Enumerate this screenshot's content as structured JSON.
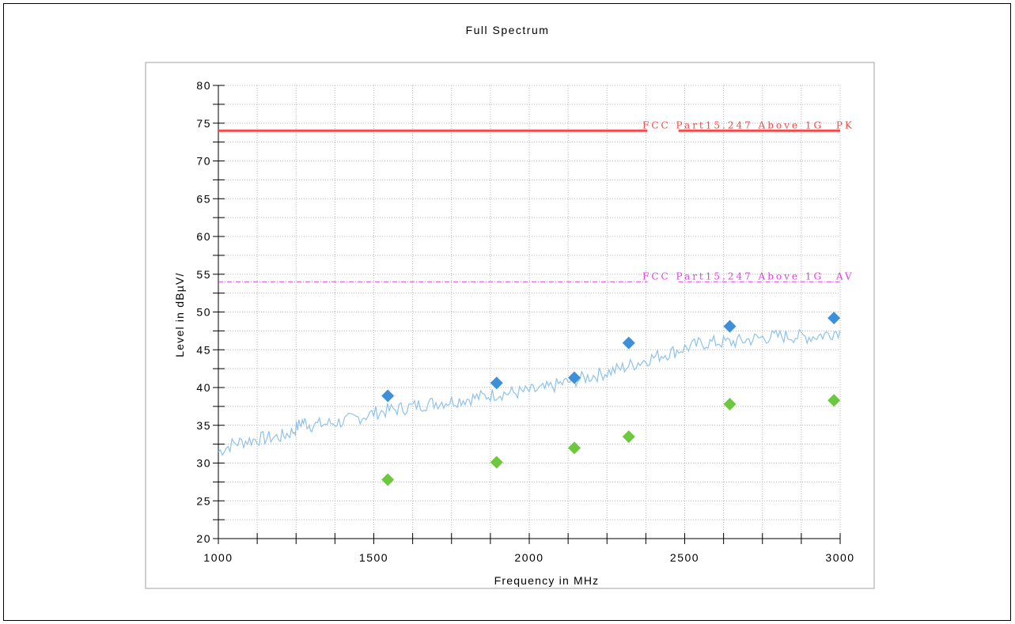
{
  "chart_data": {
    "type": "line",
    "title": "Full Spectrum",
    "xlabel": "Frequency in MHz",
    "ylabel": "Level in dBµV/",
    "xlim": [
      1000,
      3000
    ],
    "ylim": [
      20,
      80
    ],
    "x_ticks": [
      "1000",
      "1500",
      "2000",
      "2500",
      "3000"
    ],
    "y_ticks": [
      "20",
      "25",
      "30",
      "35",
      "40",
      "45",
      "50",
      "55",
      "60",
      "65",
      "70",
      "75",
      "80"
    ],
    "grid": true,
    "limit_lines": [
      {
        "name": "FCC Part15.247 Above 1G _PK",
        "y": 74,
        "color": "#f24b4b",
        "style": "solid"
      },
      {
        "name": "FCC Part15.247 Above 1G _AV",
        "y": 54,
        "color": "#e040e0",
        "style": "dash-dot"
      }
    ],
    "series": [
      {
        "type": "line",
        "color": "#8ec2ec",
        "x": [
          1000,
          1050,
          1100,
          1150,
          1200,
          1240,
          1270,
          1300,
          1350,
          1400,
          1450,
          1500,
          1550,
          1600,
          1650,
          1700,
          1750,
          1800,
          1850,
          1900,
          1950,
          2000,
          2050,
          2100,
          2150,
          2200,
          2250,
          2300,
          2350,
          2400,
          2450,
          2500,
          2550,
          2600,
          2650,
          2700,
          2750,
          2800,
          2850,
          2900,
          2950,
          3000
        ],
        "y": [
          31.5,
          32.6,
          33.0,
          33.3,
          33.5,
          34.2,
          35.5,
          35.0,
          35.2,
          35.5,
          36.0,
          36.6,
          37.0,
          37.3,
          37.7,
          38.0,
          38.2,
          38.5,
          38.8,
          39.2,
          39.3,
          39.5,
          39.8,
          40.5,
          41.0,
          41.5,
          42.0,
          42.6,
          43.3,
          44.0,
          44.6,
          45.2,
          45.8,
          46.0,
          46.0,
          46.3,
          46.6,
          46.8,
          46.8,
          46.7,
          47.0,
          47.6
        ]
      },
      {
        "name": "",
        "type": "scatter",
        "color": "#3d8fd9",
        "x": [
          1545,
          1895,
          2145,
          2320,
          2645,
          2980
        ],
        "y": [
          38.9,
          40.6,
          41.3,
          45.9,
          48.1,
          49.2
        ]
      },
      {
        "name": "",
        "type": "scatter",
        "color": "#6cc83c",
        "x": [
          1545,
          1895,
          2145,
          2320,
          2645,
          2980
        ],
        "y": [
          27.8,
          30.1,
          32.0,
          33.5,
          37.8,
          38.3
        ]
      }
    ]
  }
}
